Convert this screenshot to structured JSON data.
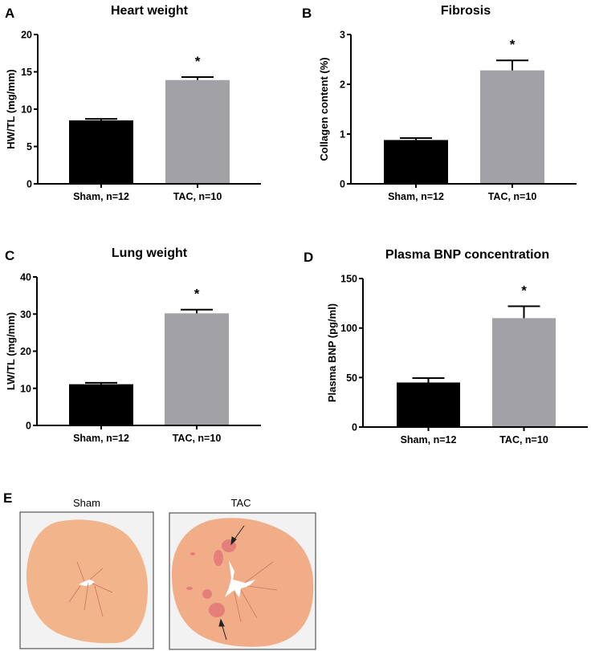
{
  "colors": {
    "sham": "#000000",
    "tac": "#a2a2a6",
    "tissue": "#f2b48a",
    "fibrosis": "#d9486a"
  },
  "chart_data": [
    {
      "panel": "A",
      "type": "bar",
      "title": "Heart weight",
      "ylabel": "HW/TL (mg/mm)",
      "xlabel": "",
      "categories": [
        "Sham, n=12",
        "TAC, n=10"
      ],
      "values": [
        8.5,
        13.9
      ],
      "errors": [
        0.2,
        0.4
      ],
      "significance": [
        "",
        "*"
      ],
      "ylim": [
        0,
        20
      ],
      "yticks": [
        0,
        5,
        10,
        15,
        20
      ],
      "grid": false
    },
    {
      "panel": "B",
      "type": "bar",
      "title": "Fibrosis",
      "ylabel": "Collagen content (%)",
      "xlabel": "",
      "categories": [
        "Sham, n=12",
        "TAC, n=10"
      ],
      "values": [
        0.88,
        2.28
      ],
      "errors": [
        0.04,
        0.2
      ],
      "significance": [
        "",
        "*"
      ],
      "ylim": [
        0,
        3
      ],
      "yticks": [
        0,
        1,
        2,
        3
      ],
      "grid": false
    },
    {
      "panel": "C",
      "type": "bar",
      "title": "Lung weight",
      "ylabel": "LW/TL (mg/mm)",
      "xlabel": "",
      "categories": [
        "Sham, n=12",
        "TAC, n=10"
      ],
      "values": [
        11.1,
        30.2
      ],
      "errors": [
        0.4,
        1.0
      ],
      "significance": [
        "",
        "*"
      ],
      "ylim": [
        0,
        40
      ],
      "yticks": [
        0,
        10,
        20,
        30,
        40
      ],
      "grid": false
    },
    {
      "panel": "D",
      "type": "bar",
      "title": "Plasma BNP concentration",
      "ylabel": "Plasma BNP (pg/ml)",
      "xlabel": "",
      "categories": [
        "Sham, n=12",
        "TAC, n=10"
      ],
      "values": [
        45,
        110
      ],
      "errors": [
        4.5,
        12
      ],
      "significance": [
        "",
        "*"
      ],
      "ylim": [
        0,
        150
      ],
      "yticks": [
        0,
        50,
        100,
        150
      ],
      "grid": false
    }
  ],
  "histology": {
    "panel": "E",
    "images": [
      {
        "label": "Sham"
      },
      {
        "label": "TAC"
      }
    ]
  }
}
